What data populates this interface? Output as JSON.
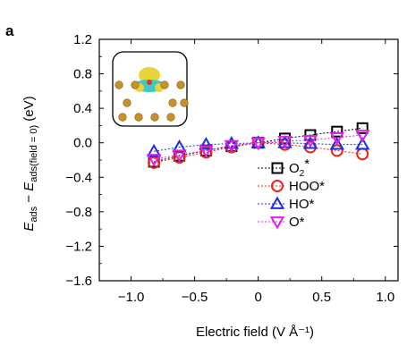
{
  "panel_label": "a",
  "chart_data": {
    "type": "scatter",
    "xlabel": "Electric field (V Å⁻¹)",
    "ylabel": {
      "main": "E",
      "main_sub": "ads",
      "minus": " − ",
      "second": "E",
      "second_sub": "ads(field = 0)",
      "unit": " (eV)"
    },
    "xlim": [
      -1.25,
      1.1
    ],
    "ylim": [
      -1.6,
      1.2
    ],
    "xticks": [
      -1.0,
      -0.5,
      0,
      0.5,
      1.0
    ],
    "xtick_labels": [
      "−1.0",
      "−0.5",
      "0",
      "0.5",
      "1.0"
    ],
    "yticks": [
      1.2,
      0.8,
      0.4,
      0.0,
      -0.4,
      -0.8,
      -1.2,
      -1.6
    ],
    "ytick_labels": [
      "1.2",
      "0.8",
      "0.4",
      "0.0",
      "−0.4",
      "−0.8",
      "−1.2",
      "−1.6"
    ],
    "x": [
      -0.82,
      -0.62,
      -0.41,
      -0.21,
      0,
      0.21,
      0.41,
      0.62,
      0.82
    ],
    "legend_position": "lower-right",
    "inset": "adsorbate charge-density isosurface above metal slab",
    "series": [
      {
        "name": "O",
        "name_sub": "2",
        "name_suffix": "*",
        "marker": "square",
        "color": "#000000",
        "values": [
          -0.22,
          -0.15,
          -0.09,
          -0.04,
          0.0,
          0.05,
          0.09,
          0.13,
          0.17
        ]
      },
      {
        "name": "HOO*",
        "name_sub": "",
        "name_suffix": "",
        "marker": "circle",
        "color": "#e8241c",
        "values": [
          -0.23,
          -0.17,
          -0.11,
          -0.05,
          0.0,
          -0.02,
          -0.05,
          -0.09,
          -0.13
        ]
      },
      {
        "name": "HO*",
        "name_sub": "",
        "name_suffix": "",
        "marker": "triangle-up",
        "color": "#1b2ee0",
        "values": [
          -0.1,
          -0.05,
          -0.02,
          -0.01,
          0.0,
          0.0,
          -0.01,
          -0.02,
          -0.02
        ]
      },
      {
        "name": "O*",
        "name_sub": "",
        "name_suffix": "",
        "marker": "triangle-down",
        "color": "#e020e8",
        "values": [
          -0.19,
          -0.14,
          -0.09,
          -0.03,
          0.0,
          0.02,
          0.03,
          0.06,
          0.09
        ]
      }
    ]
  }
}
